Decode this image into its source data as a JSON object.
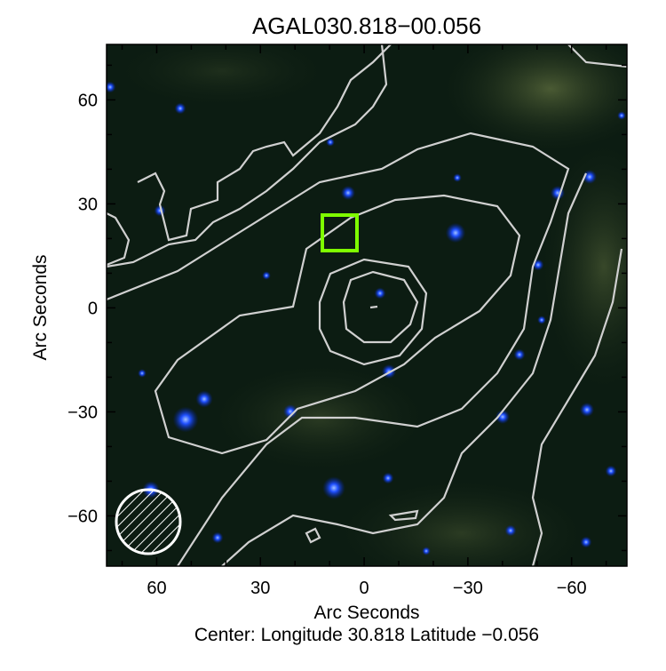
{
  "chart_data": {
    "type": "image",
    "title": "AGAL030.818−00.056",
    "xlabel": "Arc Seconds",
    "ylabel": "Arc Seconds",
    "subtitle": "Center:  Longitude 30.818 Latitude −0.056",
    "xlim": [
      74.5,
      -76
    ],
    "ylim": [
      -74.5,
      76
    ],
    "x_ticks": [
      60,
      30,
      0,
      -30,
      -60
    ],
    "x_tick_labels": [
      "60",
      "30",
      "0",
      "−30",
      "−60"
    ],
    "y_ticks": [
      60,
      30,
      0,
      -30,
      -60
    ],
    "y_tick_labels": [
      "60",
      "30",
      "0",
      "−30",
      "−60"
    ],
    "minor_tick_step": 10,
    "marker_box": {
      "center": [
        7,
        21.7
      ],
      "size": 10.5,
      "color": "#7fff00"
    },
    "beam": {
      "center": [
        62.3,
        -61.8
      ],
      "diameter": 18.5,
      "color": "#ffffff"
    },
    "contour_color": "#d0d0d0",
    "background_colors": [
      "#0a1a10",
      "#3a4a2a"
    ],
    "star_color": "#3060ff"
  }
}
